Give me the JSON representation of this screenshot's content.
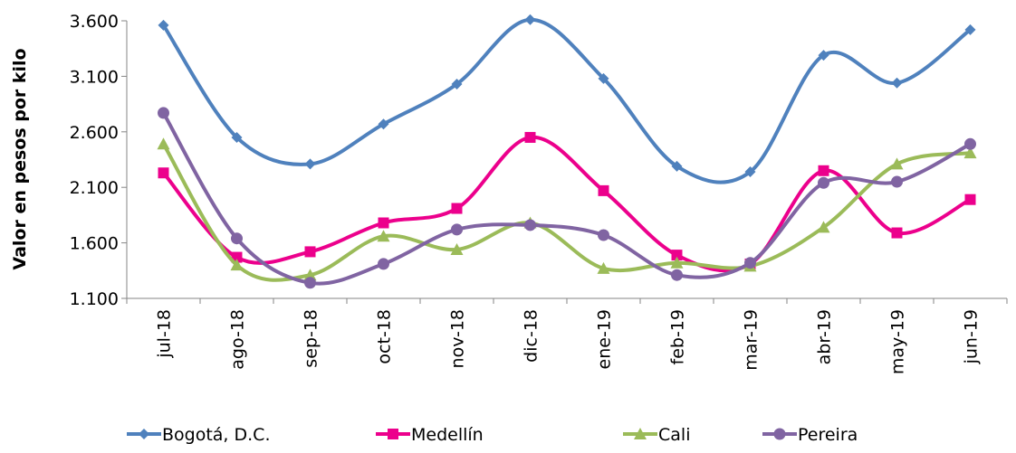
{
  "chart_data": {
    "type": "line",
    "title": "",
    "xlabel": "",
    "ylabel": "Valor en pesos por kilo",
    "ylim": [
      1100,
      3600
    ],
    "y_ticks": [
      "1.100",
      "1.600",
      "2.100",
      "2.600",
      "3.100",
      "3.600"
    ],
    "y_tick_values": [
      1100,
      1600,
      2100,
      2600,
      3100,
      3600
    ],
    "categories": [
      "jul-18",
      "ago-18",
      "sep-18",
      "oct-18",
      "nov-18",
      "dic-18",
      "ene-19",
      "feb-19",
      "mar-19",
      "abr-19",
      "may-19",
      "jun-19"
    ],
    "grid": false,
    "smooth": true,
    "legend_position": "bottom",
    "series": [
      {
        "name": "Bogotá, D.C.",
        "color": "#4F81BD",
        "marker": "diamond",
        "values": [
          3560,
          2550,
          2310,
          2670,
          3030,
          3610,
          3080,
          2290,
          2240,
          3290,
          3040,
          3520
        ]
      },
      {
        "name": "Medellín",
        "color": "#EC008C",
        "marker": "square",
        "values": [
          2230,
          1470,
          1520,
          1780,
          1910,
          2550,
          2070,
          1490,
          1410,
          2250,
          1690,
          1990
        ]
      },
      {
        "name": "Cali",
        "color": "#9BBB59",
        "marker": "triangle",
        "values": [
          2490,
          1400,
          1310,
          1660,
          1540,
          1780,
          1370,
          1420,
          1390,
          1740,
          2310,
          2410
        ]
      },
      {
        "name": "Pereira",
        "color": "#8064A2",
        "marker": "circle",
        "values": [
          2770,
          1640,
          1240,
          1410,
          1720,
          1760,
          1670,
          1310,
          1420,
          2140,
          2150,
          2490
        ]
      }
    ]
  }
}
